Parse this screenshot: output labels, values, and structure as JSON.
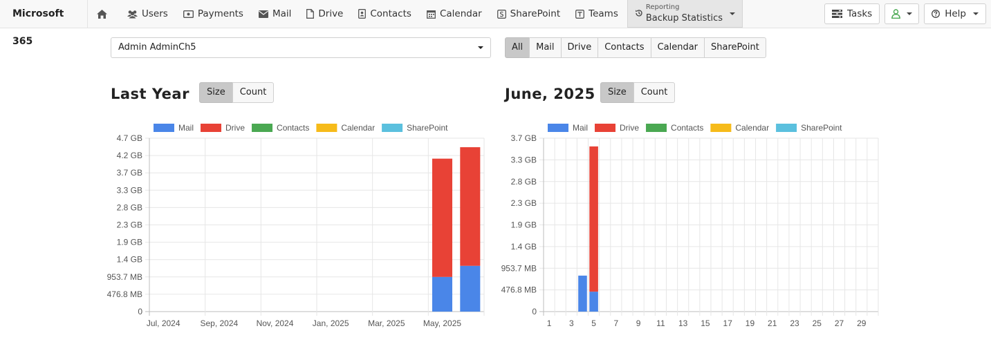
{
  "navbar": {
    "brand": "Microsoft 365",
    "items": [
      {
        "key": "home",
        "label": "",
        "icon": "home-icon"
      },
      {
        "key": "users",
        "label": "Users",
        "icon": "users-icon"
      },
      {
        "key": "payments",
        "label": "Payments",
        "icon": "money-icon"
      },
      {
        "key": "mail",
        "label": "Mail",
        "icon": "envelope-icon"
      },
      {
        "key": "drive",
        "label": "Drive",
        "icon": "file-icon"
      },
      {
        "key": "contacts",
        "label": "Contacts",
        "icon": "contact-card-icon"
      },
      {
        "key": "calendar",
        "label": "Calendar",
        "icon": "calendar-icon"
      },
      {
        "key": "sharepoint",
        "label": "SharePoint",
        "icon": "sharepoint-icon"
      },
      {
        "key": "teams",
        "label": "Teams",
        "icon": "teams-icon"
      }
    ],
    "reporting": {
      "small": "Reporting",
      "label": "Backup Statistics",
      "icon": "history-icon"
    },
    "tasks_label": "Tasks",
    "help_label": "Help"
  },
  "filters": {
    "user_selected": "Admin AdminCh5",
    "services": [
      "All",
      "Mail",
      "Drive",
      "Contacts",
      "Calendar",
      "SharePoint"
    ],
    "active_service": "All"
  },
  "colors": {
    "Mail": "#4a86e8",
    "Drive": "#e84236",
    "Contacts": "#4aa852",
    "Calendar": "#f6bb1a",
    "SharePoint": "#5bc0de"
  },
  "charts": {
    "left": {
      "title": "Last Year",
      "toggle": [
        "Size",
        "Count"
      ],
      "toggle_active": "Size"
    },
    "right": {
      "title": "June, 2025",
      "toggle": [
        "Size",
        "Count"
      ],
      "toggle_active": "Size"
    }
  },
  "chart_data": [
    {
      "type": "bar",
      "stacked": true,
      "title": "Last Year",
      "legend": [
        "Mail",
        "Drive",
        "Contacts",
        "Calendar",
        "SharePoint"
      ],
      "legend_position": "top",
      "grid": true,
      "categories": [
        "Jul, 2024",
        "Aug, 2024",
        "Sep, 2024",
        "Oct, 2024",
        "Nov, 2024",
        "Dec, 2024",
        "Jan, 2025",
        "Feb, 2025",
        "Mar, 2025",
        "Apr, 2025",
        "May, 2025",
        "Jun, 2025"
      ],
      "x_tick_labels": [
        "Jul, 2024",
        "Sep, 2024",
        "Nov, 2024",
        "Jan, 2025",
        "Mar, 2025",
        "May, 2025"
      ],
      "y_tick_labels": [
        "0",
        "476.8 MB",
        "953.7 MB",
        "1.4 GB",
        "1.9 GB",
        "2.3 GB",
        "2.8 GB",
        "3.3 GB",
        "3.7 GB",
        "4.2 GB",
        "4.7 GB"
      ],
      "y_unit": "MB",
      "ylim": [
        0,
        5000
      ],
      "series": [
        {
          "name": "Mail",
          "values": [
            0,
            0,
            0,
            0,
            0,
            0,
            0,
            0,
            0,
            0,
            1000,
            1320
          ]
        },
        {
          "name": "Drive",
          "values": [
            0,
            0,
            0,
            0,
            0,
            0,
            0,
            0,
            0,
            0,
            3410,
            3420
          ]
        },
        {
          "name": "Contacts",
          "values": [
            0,
            0,
            0,
            0,
            0,
            0,
            0,
            0,
            0,
            0,
            0,
            0
          ]
        },
        {
          "name": "Calendar",
          "values": [
            0,
            0,
            0,
            0,
            0,
            0,
            0,
            0,
            0,
            0,
            0,
            0
          ]
        },
        {
          "name": "SharePoint",
          "values": [
            0,
            0,
            0,
            0,
            0,
            0,
            0,
            0,
            0,
            0,
            0,
            0
          ]
        }
      ]
    },
    {
      "type": "bar",
      "stacked": true,
      "title": "June, 2025",
      "legend": [
        "Mail",
        "Drive",
        "Contacts",
        "Calendar",
        "SharePoint"
      ],
      "legend_position": "top",
      "grid": true,
      "categories": [
        "1",
        "2",
        "3",
        "4",
        "5",
        "6",
        "7",
        "8",
        "9",
        "10",
        "11",
        "12",
        "13",
        "14",
        "15",
        "16",
        "17",
        "18",
        "19",
        "20",
        "21",
        "22",
        "23",
        "24",
        "25",
        "26",
        "27",
        "28",
        "29",
        "30"
      ],
      "x_tick_labels": [
        "1",
        "3",
        "5",
        "7",
        "9",
        "11",
        "13",
        "15",
        "17",
        "19",
        "21",
        "23",
        "25",
        "27",
        "29"
      ],
      "y_tick_labels": [
        "0",
        "476.8 MB",
        "953.7 MB",
        "1.4 GB",
        "1.9 GB",
        "2.3 GB",
        "2.8 GB",
        "3.3 GB",
        "3.7 GB"
      ],
      "y_unit": "MB",
      "ylim": [
        0,
        4000
      ],
      "series": [
        {
          "name": "Mail",
          "values": [
            0,
            0,
            0,
            830,
            460,
            0,
            0,
            0,
            0,
            0,
            0,
            0,
            0,
            0,
            0,
            0,
            0,
            0,
            0,
            0,
            0,
            0,
            0,
            0,
            0,
            0,
            0,
            0,
            0,
            0
          ]
        },
        {
          "name": "Drive",
          "values": [
            0,
            0,
            0,
            0,
            3350,
            0,
            0,
            0,
            0,
            0,
            0,
            0,
            0,
            0,
            0,
            0,
            0,
            0,
            0,
            0,
            0,
            0,
            0,
            0,
            0,
            0,
            0,
            0,
            0,
            0
          ]
        },
        {
          "name": "Contacts",
          "values": [
            0,
            0,
            0,
            0,
            0,
            0,
            0,
            0,
            0,
            0,
            0,
            0,
            0,
            0,
            0,
            0,
            0,
            0,
            0,
            0,
            0,
            0,
            0,
            0,
            0,
            0,
            0,
            0,
            0,
            0
          ]
        },
        {
          "name": "Calendar",
          "values": [
            0,
            0,
            0,
            0,
            0,
            0,
            0,
            0,
            0,
            0,
            0,
            0,
            0,
            0,
            0,
            0,
            0,
            0,
            0,
            0,
            0,
            0,
            0,
            0,
            0,
            0,
            0,
            0,
            0,
            0
          ]
        },
        {
          "name": "SharePoint",
          "values": [
            0,
            0,
            0,
            0,
            0,
            0,
            0,
            0,
            0,
            0,
            0,
            0,
            0,
            0,
            0,
            0,
            0,
            0,
            0,
            0,
            0,
            0,
            0,
            0,
            0,
            0,
            0,
            0,
            0,
            0
          ]
        }
      ]
    }
  ]
}
